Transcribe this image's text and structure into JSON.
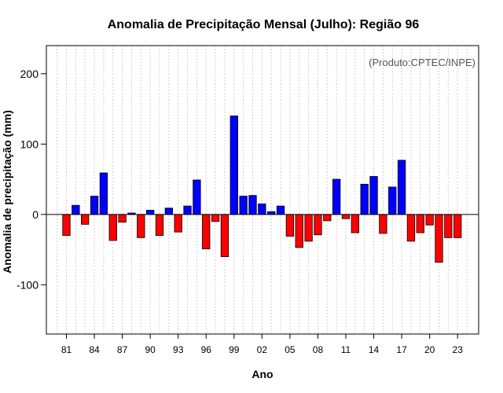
{
  "chart_data": {
    "type": "bar",
    "title": "Anomalia de Precipitação Mensal (Julho): Região 96",
    "xlabel": "Ano",
    "ylabel": "Anomalia de precipitação (mm)",
    "credit": "(Produto:CPTEC/INPE)",
    "ylim": [
      -170,
      240
    ],
    "yticks": [
      -100,
      0,
      100,
      200
    ],
    "grid": true,
    "positive_color": "#0000ff",
    "negative_color": "#ff0000",
    "categories": [
      "81",
      "82",
      "83",
      "84",
      "85",
      "86",
      "87",
      "88",
      "89",
      "90",
      "91",
      "92",
      "93",
      "94",
      "95",
      "96",
      "97",
      "98",
      "99",
      "00",
      "01",
      "02",
      "03",
      "04",
      "05",
      "06",
      "07",
      "08",
      "09",
      "10",
      "11",
      "12",
      "13",
      "14",
      "15",
      "16",
      "17",
      "18",
      "19",
      "20",
      "21",
      "22",
      "23"
    ],
    "values": [
      -30,
      13,
      -14,
      26,
      59,
      -37,
      -11,
      2,
      -33,
      6,
      -30,
      9,
      -25,
      12,
      49,
      -49,
      -10,
      -60,
      140,
      26,
      27,
      15,
      4,
      12,
      -31,
      -47,
      -38,
      -29,
      -9,
      50,
      -6,
      -26,
      43,
      54,
      -27,
      39,
      77,
      -38,
      -26,
      -15,
      -68,
      -33,
      -33
    ],
    "xtick_labels": [
      "81",
      "84",
      "87",
      "90",
      "93",
      "96",
      "99",
      "02",
      "05",
      "08",
      "11",
      "14",
      "17",
      "20",
      "23"
    ]
  }
}
